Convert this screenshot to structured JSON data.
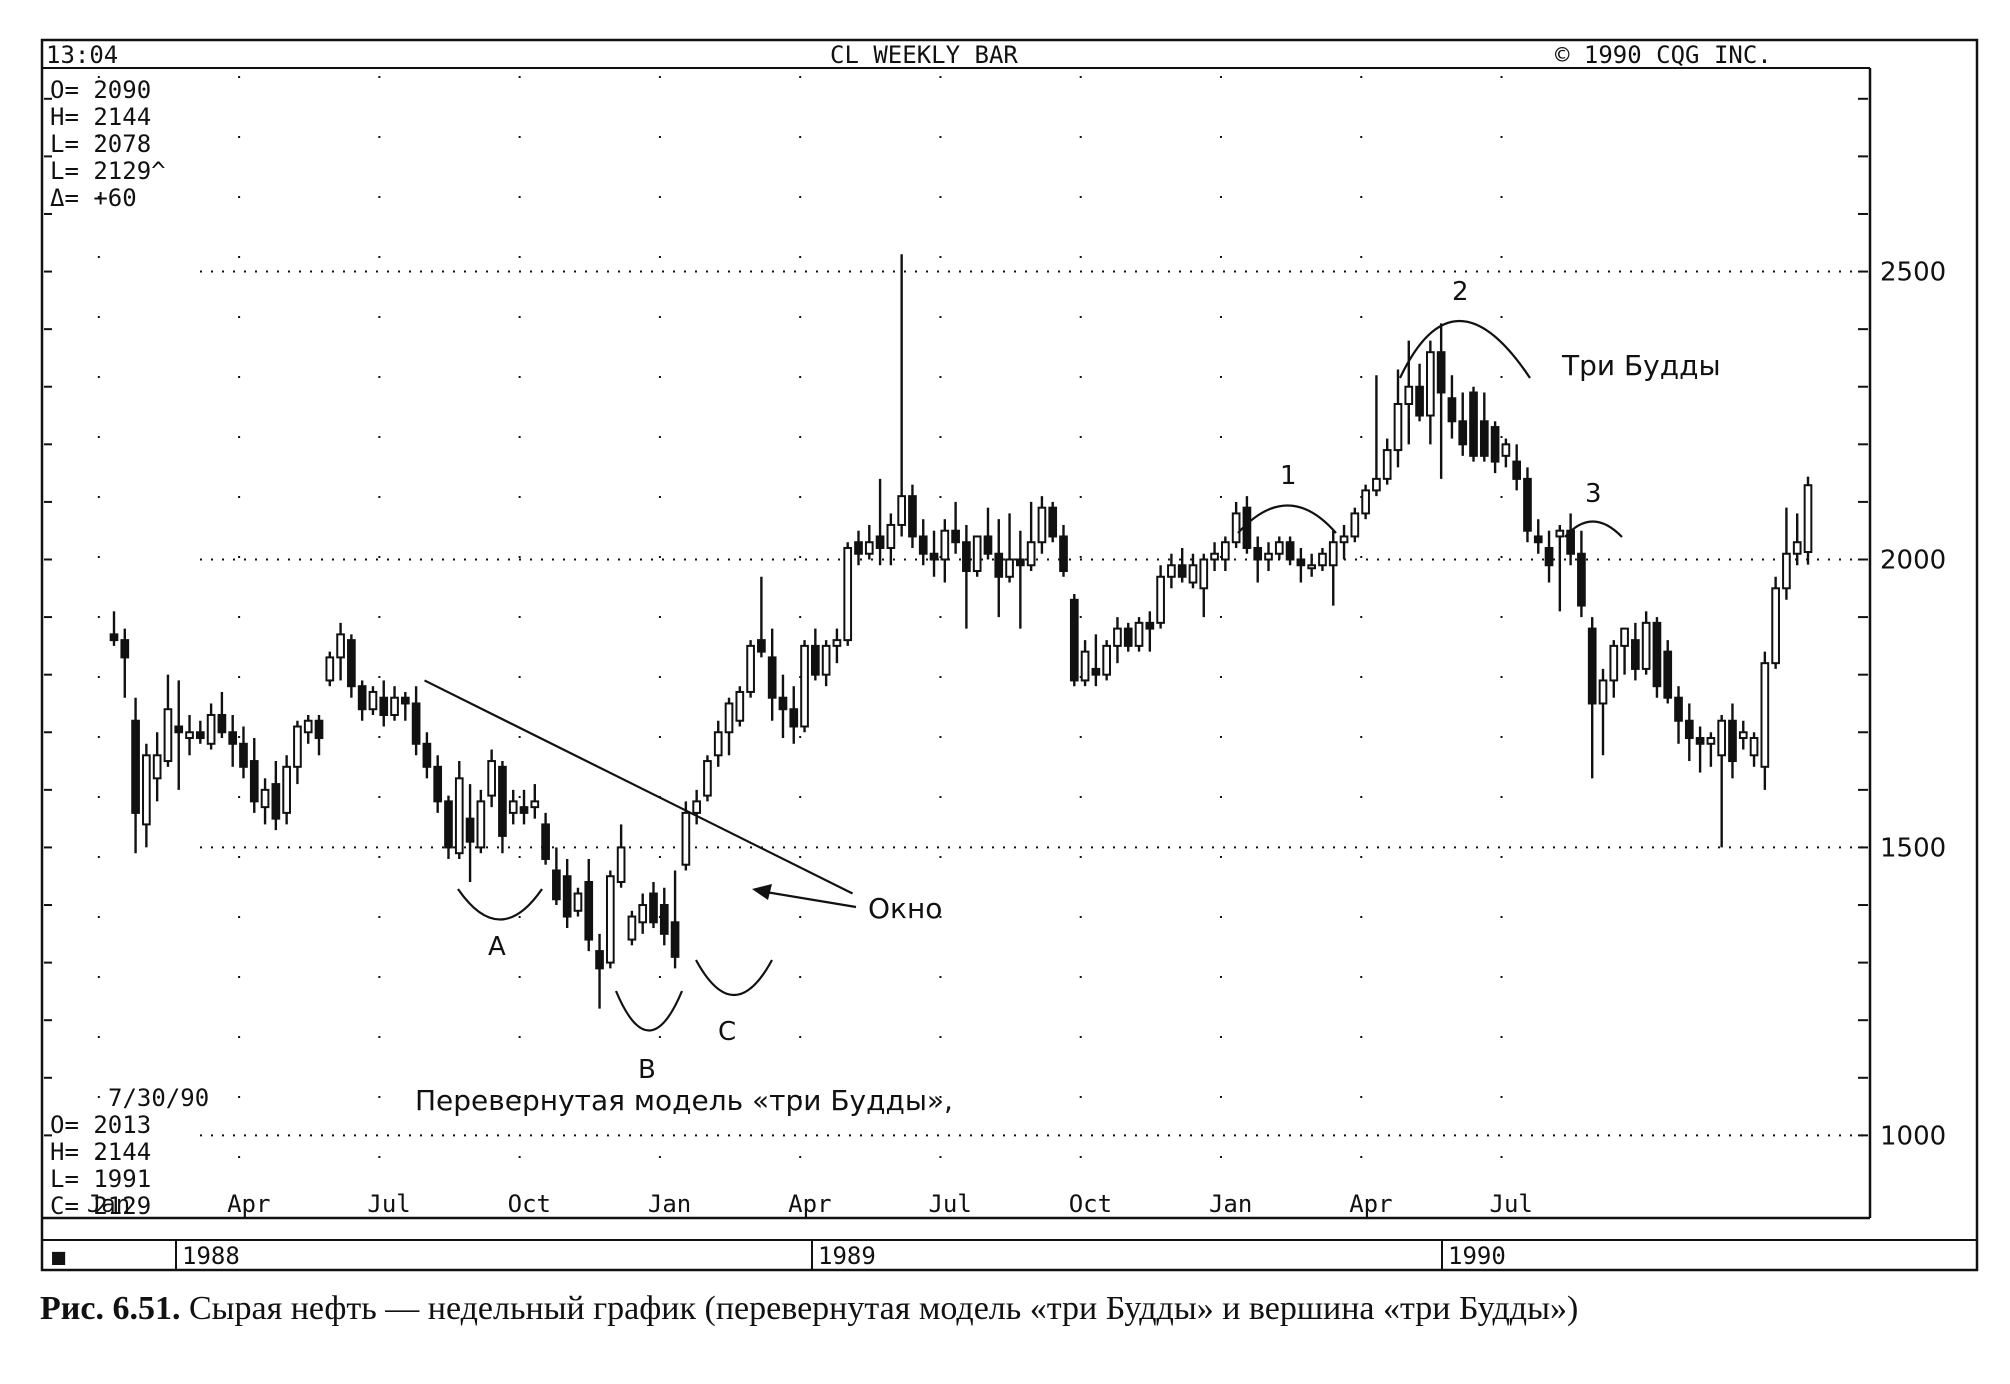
{
  "header": {
    "time": "13:04",
    "title": "CL WEEKLY BAR",
    "copyright": "©  1990 CQG INC."
  },
  "quote_top": [
    "O= 2090",
    "H= 2144",
    "L= 2078",
    "L= 2129^",
    "Δ=   +60"
  ],
  "quote_bottom": {
    "date": "7/30/90",
    "lines": [
      "O=    2013",
      "H=    2144",
      "L=    1991",
      "C=    2129"
    ]
  },
  "bottom_bar": {
    "marker": "■",
    "years": [
      "1988",
      "1989",
      "1990"
    ]
  },
  "annotations": {
    "window_label": "Окно",
    "three_buddha_top": "Три Будды",
    "inverted_model": "Перевернутая модель «три Будды»,",
    "labels": [
      "A",
      "B",
      "C",
      "1",
      "2",
      "3"
    ]
  },
  "caption": {
    "figure": "Рис. 6.51.",
    "text": " Сырая нефть — недельный график (перевернутая модель «три Будды» и вершина «три Будды»)"
  },
  "colors": {
    "ink": "#111111",
    "background": "#ffffff"
  },
  "chart_data": {
    "type": "candlestick",
    "title": "CL WEEKLY BAR",
    "x_ticks": [
      "Jan",
      "Apr",
      "Jul",
      "Oct",
      "Jan",
      "Apr",
      "Jul",
      "Oct",
      "Jan",
      "Apr",
      "Jul"
    ],
    "y_ticks": [
      1000,
      1500,
      2000,
      2500
    ],
    "ylim": [
      860,
      2850
    ],
    "grid": "dotted",
    "trendline": {
      "from": {
        "week": 26,
        "value": 1790
      },
      "to": {
        "week": 64,
        "value": 1420
      }
    },
    "candles": [
      {
        "o": 1870,
        "h": 1910,
        "l": 1850,
        "c": 1860
      },
      {
        "o": 1860,
        "h": 1880,
        "l": 1760,
        "c": 1830
      },
      {
        "o": 1720,
        "h": 1760,
        "l": 1490,
        "c": 1560
      },
      {
        "o": 1540,
        "h": 1680,
        "l": 1500,
        "c": 1660
      },
      {
        "o": 1620,
        "h": 1700,
        "l": 1580,
        "c": 1660
      },
      {
        "o": 1650,
        "h": 1800,
        "l": 1640,
        "c": 1740
      },
      {
        "o": 1710,
        "h": 1790,
        "l": 1600,
        "c": 1700
      },
      {
        "o": 1690,
        "h": 1730,
        "l": 1660,
        "c": 1700
      },
      {
        "o": 1700,
        "h": 1720,
        "l": 1680,
        "c": 1690
      },
      {
        "o": 1680,
        "h": 1750,
        "l": 1670,
        "c": 1730
      },
      {
        "o": 1730,
        "h": 1770,
        "l": 1690,
        "c": 1700
      },
      {
        "o": 1700,
        "h": 1730,
        "l": 1640,
        "c": 1680
      },
      {
        "o": 1680,
        "h": 1710,
        "l": 1620,
        "c": 1640
      },
      {
        "o": 1650,
        "h": 1690,
        "l": 1560,
        "c": 1580
      },
      {
        "o": 1570,
        "h": 1620,
        "l": 1540,
        "c": 1600
      },
      {
        "o": 1610,
        "h": 1650,
        "l": 1530,
        "c": 1550
      },
      {
        "o": 1560,
        "h": 1660,
        "l": 1540,
        "c": 1640
      },
      {
        "o": 1640,
        "h": 1720,
        "l": 1610,
        "c": 1710
      },
      {
        "o": 1700,
        "h": 1730,
        "l": 1680,
        "c": 1720
      },
      {
        "o": 1720,
        "h": 1730,
        "l": 1660,
        "c": 1690
      },
      {
        "o": 1790,
        "h": 1840,
        "l": 1780,
        "c": 1830
      },
      {
        "o": 1830,
        "h": 1890,
        "l": 1790,
        "c": 1870
      },
      {
        "o": 1860,
        "h": 1870,
        "l": 1760,
        "c": 1780
      },
      {
        "o": 1780,
        "h": 1790,
        "l": 1720,
        "c": 1740
      },
      {
        "o": 1740,
        "h": 1780,
        "l": 1730,
        "c": 1770
      },
      {
        "o": 1760,
        "h": 1790,
        "l": 1710,
        "c": 1730
      },
      {
        "o": 1730,
        "h": 1780,
        "l": 1720,
        "c": 1760
      },
      {
        "o": 1760,
        "h": 1770,
        "l": 1720,
        "c": 1750
      },
      {
        "o": 1750,
        "h": 1780,
        "l": 1660,
        "c": 1680
      },
      {
        "o": 1680,
        "h": 1700,
        "l": 1620,
        "c": 1640
      },
      {
        "o": 1640,
        "h": 1660,
        "l": 1560,
        "c": 1580
      },
      {
        "o": 1580,
        "h": 1590,
        "l": 1480,
        "c": 1500
      },
      {
        "o": 1490,
        "h": 1650,
        "l": 1480,
        "c": 1620
      },
      {
        "o": 1550,
        "h": 1610,
        "l": 1440,
        "c": 1510
      },
      {
        "o": 1500,
        "h": 1600,
        "l": 1490,
        "c": 1580
      },
      {
        "o": 1590,
        "h": 1670,
        "l": 1570,
        "c": 1650
      },
      {
        "o": 1640,
        "h": 1650,
        "l": 1490,
        "c": 1520
      },
      {
        "o": 1560,
        "h": 1600,
        "l": 1540,
        "c": 1580
      },
      {
        "o": 1570,
        "h": 1600,
        "l": 1540,
        "c": 1560
      },
      {
        "o": 1570,
        "h": 1610,
        "l": 1550,
        "c": 1580
      },
      {
        "o": 1540,
        "h": 1560,
        "l": 1470,
        "c": 1480
      },
      {
        "o": 1460,
        "h": 1500,
        "l": 1400,
        "c": 1410
      },
      {
        "o": 1450,
        "h": 1480,
        "l": 1360,
        "c": 1380
      },
      {
        "o": 1390,
        "h": 1430,
        "l": 1380,
        "c": 1420
      },
      {
        "o": 1440,
        "h": 1480,
        "l": 1320,
        "c": 1340
      },
      {
        "o": 1320,
        "h": 1350,
        "l": 1220,
        "c": 1290
      },
      {
        "o": 1300,
        "h": 1460,
        "l": 1290,
        "c": 1450
      },
      {
        "o": 1440,
        "h": 1540,
        "l": 1430,
        "c": 1500
      },
      {
        "o": 1340,
        "h": 1390,
        "l": 1330,
        "c": 1380
      },
      {
        "o": 1370,
        "h": 1420,
        "l": 1350,
        "c": 1400
      },
      {
        "o": 1420,
        "h": 1440,
        "l": 1360,
        "c": 1370
      },
      {
        "o": 1400,
        "h": 1430,
        "l": 1330,
        "c": 1350
      },
      {
        "o": 1370,
        "h": 1460,
        "l": 1290,
        "c": 1310
      },
      {
        "o": 1470,
        "h": 1580,
        "l": 1460,
        "c": 1560
      },
      {
        "o": 1560,
        "h": 1600,
        "l": 1540,
        "c": 1580
      },
      {
        "o": 1590,
        "h": 1660,
        "l": 1580,
        "c": 1650
      },
      {
        "o": 1660,
        "h": 1720,
        "l": 1640,
        "c": 1700
      },
      {
        "o": 1700,
        "h": 1760,
        "l": 1660,
        "c": 1750
      },
      {
        "o": 1720,
        "h": 1780,
        "l": 1710,
        "c": 1770
      },
      {
        "o": 1770,
        "h": 1860,
        "l": 1760,
        "c": 1850
      },
      {
        "o": 1860,
        "h": 1970,
        "l": 1830,
        "c": 1840
      },
      {
        "o": 1830,
        "h": 1880,
        "l": 1720,
        "c": 1760
      },
      {
        "o": 1760,
        "h": 1800,
        "l": 1690,
        "c": 1740
      },
      {
        "o": 1740,
        "h": 1780,
        "l": 1680,
        "c": 1710
      },
      {
        "o": 1710,
        "h": 1860,
        "l": 1700,
        "c": 1850
      },
      {
        "o": 1850,
        "h": 1880,
        "l": 1790,
        "c": 1800
      },
      {
        "o": 1800,
        "h": 1860,
        "l": 1780,
        "c": 1850
      },
      {
        "o": 1850,
        "h": 1880,
        "l": 1820,
        "c": 1860
      },
      {
        "o": 1860,
        "h": 2030,
        "l": 1850,
        "c": 2020
      },
      {
        "o": 2030,
        "h": 2050,
        "l": 1990,
        "c": 2010
      },
      {
        "o": 2010,
        "h": 2060,
        "l": 2000,
        "c": 2030
      },
      {
        "o": 2040,
        "h": 2140,
        "l": 1990,
        "c": 2020
      },
      {
        "o": 2020,
        "h": 2080,
        "l": 1990,
        "c": 2060
      },
      {
        "o": 2060,
        "h": 2530,
        "l": 2040,
        "c": 2110
      },
      {
        "o": 2110,
        "h": 2130,
        "l": 2020,
        "c": 2040
      },
      {
        "o": 2040,
        "h": 2070,
        "l": 1990,
        "c": 2010
      },
      {
        "o": 2010,
        "h": 2050,
        "l": 1970,
        "c": 2000
      },
      {
        "o": 2000,
        "h": 2070,
        "l": 1960,
        "c": 2050
      },
      {
        "o": 2050,
        "h": 2100,
        "l": 2010,
        "c": 2030
      },
      {
        "o": 2030,
        "h": 2060,
        "l": 1880,
        "c": 1980
      },
      {
        "o": 1980,
        "h": 2040,
        "l": 1970,
        "c": 2040
      },
      {
        "o": 2040,
        "h": 2090,
        "l": 2000,
        "c": 2010
      },
      {
        "o": 2010,
        "h": 2070,
        "l": 1900,
        "c": 1970
      },
      {
        "o": 1970,
        "h": 2080,
        "l": 1960,
        "c": 2000
      },
      {
        "o": 2000,
        "h": 2050,
        "l": 1880,
        "c": 1990
      },
      {
        "o": 1990,
        "h": 2100,
        "l": 1980,
        "c": 2030
      },
      {
        "o": 2030,
        "h": 2110,
        "l": 2010,
        "c": 2090
      },
      {
        "o": 2090,
        "h": 2100,
        "l": 2030,
        "c": 2040
      },
      {
        "o": 2040,
        "h": 2060,
        "l": 1970,
        "c": 1980
      },
      {
        "o": 1930,
        "h": 1940,
        "l": 1780,
        "c": 1790
      },
      {
        "o": 1790,
        "h": 1860,
        "l": 1780,
        "c": 1840
      },
      {
        "o": 1810,
        "h": 1870,
        "l": 1780,
        "c": 1800
      },
      {
        "o": 1800,
        "h": 1860,
        "l": 1790,
        "c": 1850
      },
      {
        "o": 1850,
        "h": 1900,
        "l": 1820,
        "c": 1880
      },
      {
        "o": 1880,
        "h": 1890,
        "l": 1840,
        "c": 1850
      },
      {
        "o": 1850,
        "h": 1900,
        "l": 1840,
        "c": 1890
      },
      {
        "o": 1890,
        "h": 1910,
        "l": 1840,
        "c": 1880
      },
      {
        "o": 1890,
        "h": 1990,
        "l": 1880,
        "c": 1970
      },
      {
        "o": 1970,
        "h": 2010,
        "l": 1950,
        "c": 1990
      },
      {
        "o": 1990,
        "h": 2020,
        "l": 1960,
        "c": 1970
      },
      {
        "o": 1960,
        "h": 2010,
        "l": 1950,
        "c": 1990
      },
      {
        "o": 1950,
        "h": 2010,
        "l": 1900,
        "c": 2000
      },
      {
        "o": 2000,
        "h": 2030,
        "l": 1980,
        "c": 2010
      },
      {
        "o": 2000,
        "h": 2040,
        "l": 1980,
        "c": 2030
      },
      {
        "o": 2030,
        "h": 2100,
        "l": 2020,
        "c": 2080
      },
      {
        "o": 2090,
        "h": 2110,
        "l": 2010,
        "c": 2020
      },
      {
        "o": 2020,
        "h": 2040,
        "l": 1960,
        "c": 2000
      },
      {
        "o": 2000,
        "h": 2030,
        "l": 1980,
        "c": 2010
      },
      {
        "o": 2010,
        "h": 2040,
        "l": 2000,
        "c": 2030
      },
      {
        "o": 2030,
        "h": 2040,
        "l": 1990,
        "c": 2000
      },
      {
        "o": 2000,
        "h": 2020,
        "l": 1960,
        "c": 1990
      },
      {
        "o": 1990,
        "h": 2010,
        "l": 1970,
        "c": 1990
      },
      {
        "o": 1990,
        "h": 2020,
        "l": 1980,
        "c": 2010
      },
      {
        "o": 1990,
        "h": 2050,
        "l": 1920,
        "c": 2030
      },
      {
        "o": 2030,
        "h": 2060,
        "l": 2000,
        "c": 2040
      },
      {
        "o": 2040,
        "h": 2090,
        "l": 2030,
        "c": 2080
      },
      {
        "o": 2080,
        "h": 2130,
        "l": 2070,
        "c": 2120
      },
      {
        "o": 2120,
        "h": 2320,
        "l": 2110,
        "c": 2140
      },
      {
        "o": 2140,
        "h": 2210,
        "l": 2130,
        "c": 2190
      },
      {
        "o": 2190,
        "h": 2330,
        "l": 2160,
        "c": 2270
      },
      {
        "o": 2270,
        "h": 2380,
        "l": 2200,
        "c": 2300
      },
      {
        "o": 2300,
        "h": 2340,
        "l": 2240,
        "c": 2250
      },
      {
        "o": 2250,
        "h": 2380,
        "l": 2200,
        "c": 2360
      },
      {
        "o": 2360,
        "h": 2410,
        "l": 2140,
        "c": 2290
      },
      {
        "o": 2280,
        "h": 2320,
        "l": 2210,
        "c": 2240
      },
      {
        "o": 2240,
        "h": 2290,
        "l": 2180,
        "c": 2200
      },
      {
        "o": 2290,
        "h": 2300,
        "l": 2170,
        "c": 2180
      },
      {
        "o": 2240,
        "h": 2290,
        "l": 2170,
        "c": 2180
      },
      {
        "o": 2230,
        "h": 2240,
        "l": 2150,
        "c": 2170
      },
      {
        "o": 2180,
        "h": 2210,
        "l": 2160,
        "c": 2200
      },
      {
        "o": 2170,
        "h": 2200,
        "l": 2120,
        "c": 2140
      },
      {
        "o": 2140,
        "h": 2160,
        "l": 2030,
        "c": 2050
      },
      {
        "o": 2040,
        "h": 2070,
        "l": 2010,
        "c": 2030
      },
      {
        "o": 2020,
        "h": 2050,
        "l": 1960,
        "c": 1990
      },
      {
        "o": 2040,
        "h": 2060,
        "l": 1910,
        "c": 2050
      },
      {
        "o": 2050,
        "h": 2080,
        "l": 1990,
        "c": 2010
      },
      {
        "o": 2010,
        "h": 2050,
        "l": 1900,
        "c": 1920
      },
      {
        "o": 1880,
        "h": 1900,
        "l": 1620,
        "c": 1750
      },
      {
        "o": 1750,
        "h": 1810,
        "l": 1660,
        "c": 1790
      },
      {
        "o": 1790,
        "h": 1860,
        "l": 1760,
        "c": 1850
      },
      {
        "o": 1850,
        "h": 1880,
        "l": 1800,
        "c": 1880
      },
      {
        "o": 1860,
        "h": 1890,
        "l": 1790,
        "c": 1810
      },
      {
        "o": 1810,
        "h": 1910,
        "l": 1800,
        "c": 1890
      },
      {
        "o": 1890,
        "h": 1900,
        "l": 1760,
        "c": 1780
      },
      {
        "o": 1840,
        "h": 1860,
        "l": 1750,
        "c": 1760
      },
      {
        "o": 1760,
        "h": 1780,
        "l": 1680,
        "c": 1720
      },
      {
        "o": 1720,
        "h": 1750,
        "l": 1650,
        "c": 1690
      },
      {
        "o": 1690,
        "h": 1710,
        "l": 1630,
        "c": 1680
      },
      {
        "o": 1680,
        "h": 1700,
        "l": 1640,
        "c": 1690
      },
      {
        "o": 1660,
        "h": 1730,
        "l": 1500,
        "c": 1720
      },
      {
        "o": 1720,
        "h": 1750,
        "l": 1620,
        "c": 1650
      },
      {
        "o": 1690,
        "h": 1720,
        "l": 1670,
        "c": 1700
      },
      {
        "o": 1660,
        "h": 1700,
        "l": 1640,
        "c": 1690
      },
      {
        "o": 1640,
        "h": 1840,
        "l": 1600,
        "c": 1820
      },
      {
        "o": 1820,
        "h": 1970,
        "l": 1810,
        "c": 1950
      },
      {
        "o": 1950,
        "h": 2090,
        "l": 1930,
        "c": 2010
      },
      {
        "o": 2010,
        "h": 2080,
        "l": 1990,
        "c": 2030
      },
      {
        "o": 2013,
        "h": 2144,
        "l": 1991,
        "c": 2129
      }
    ]
  }
}
